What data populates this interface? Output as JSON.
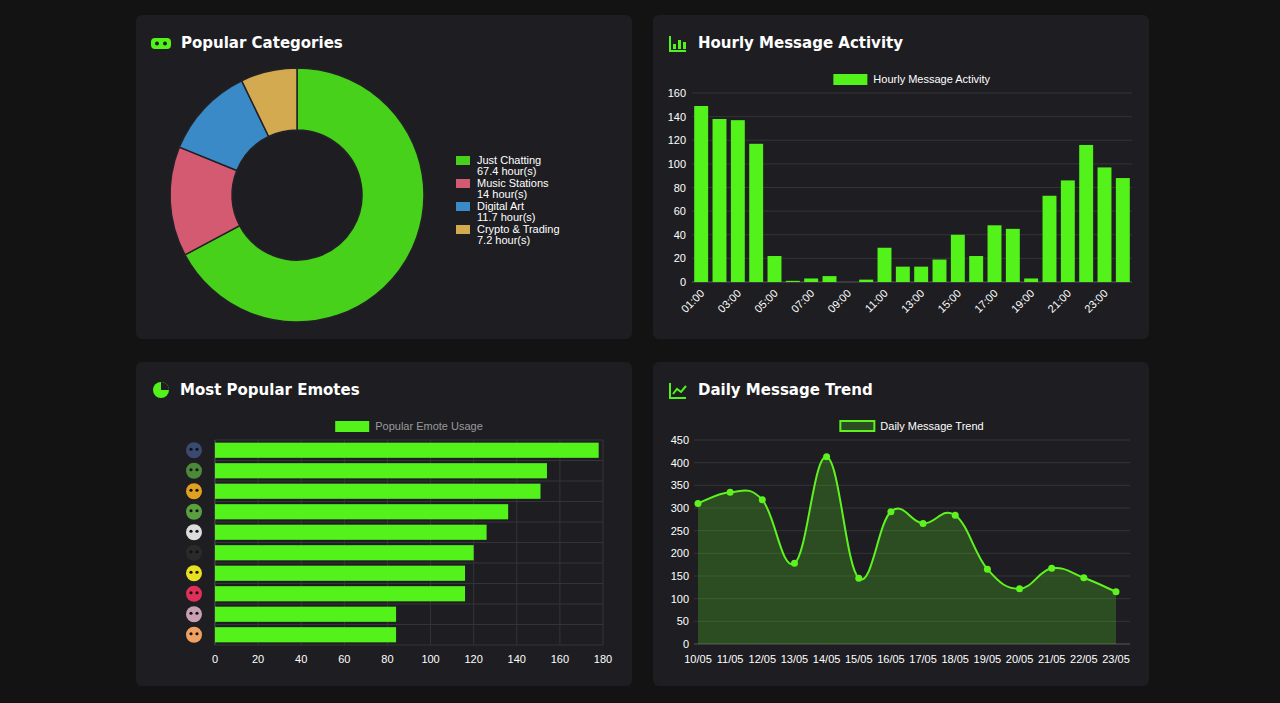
{
  "chart_data": [
    {
      "type": "pie",
      "title": "Popular Categories",
      "categories": [
        "Just Chatting",
        "Music Stations",
        "Digital Art",
        "Crypto & Trading"
      ],
      "values": [
        67.4,
        14,
        11.7,
        7.2
      ],
      "value_labels": [
        "67.4 hour(s)",
        "14 hour(s)",
        "11.7 hour(s)",
        "7.2 hour(s)"
      ],
      "colors": [
        "#47d11b",
        "#d45a72",
        "#3a8ac8",
        "#d4aa50"
      ],
      "legend": "right"
    },
    {
      "type": "bar",
      "title": "Hourly Message Activity",
      "categories": [
        "01:00",
        null,
        "03:00",
        null,
        "05:00",
        null,
        "07:00",
        null,
        "09:00",
        null,
        "11:00",
        null,
        "13:00",
        null,
        "15:00",
        null,
        "17:00",
        null,
        "19:00",
        null,
        "21:00",
        null,
        "23:00",
        null
      ],
      "series": [
        {
          "name": "Hourly Message Activity",
          "color": "#52f21a",
          "values": [
            149,
            138,
            137,
            117,
            22,
            1,
            3,
            5,
            0,
            2,
            29,
            13,
            13,
            19,
            40,
            22,
            48,
            45,
            3,
            73,
            86,
            116,
            97,
            88
          ]
        }
      ],
      "ylim": [
        0,
        160
      ],
      "yticks": [
        0,
        20,
        40,
        60,
        80,
        100,
        120,
        140,
        160
      ],
      "grid": true,
      "legend": "top"
    },
    {
      "type": "bar",
      "title": "Most Popular Emotes",
      "orientation": "horizontal",
      "categories": [
        null,
        null,
        null,
        null,
        null,
        null,
        null,
        null,
        null,
        null
      ],
      "series": [
        {
          "name": "Popular Emote Usage",
          "color": "#52f21a",
          "values": [
            178,
            154,
            151,
            136,
            126,
            120,
            116,
            116,
            84,
            84
          ]
        }
      ],
      "xlim": [
        0,
        180
      ],
      "xticks": [
        0,
        20,
        40,
        60,
        80,
        100,
        120,
        140,
        160,
        180
      ],
      "grid": true,
      "legend": "top"
    },
    {
      "type": "area",
      "title": "Daily Message Trend",
      "categories": [
        "10/05",
        "11/05",
        "12/05",
        "13/05",
        "14/05",
        "15/05",
        "16/05",
        "17/05",
        "18/05",
        "19/05",
        "20/05",
        "21/05",
        "22/05",
        "23/05"
      ],
      "series": [
        {
          "name": "Daily Message Trend",
          "color": "#5ef21f",
          "marker": "circle",
          "values": [
            310,
            335,
            318,
            178,
            413,
            145,
            292,
            266,
            284,
            165,
            122,
            167,
            146,
            115
          ]
        }
      ],
      "ylim": [
        0,
        450
      ],
      "yticks": [
        0,
        50,
        100,
        150,
        200,
        250,
        300,
        350,
        400,
        450
      ],
      "grid": true,
      "legend": "top"
    }
  ]
}
